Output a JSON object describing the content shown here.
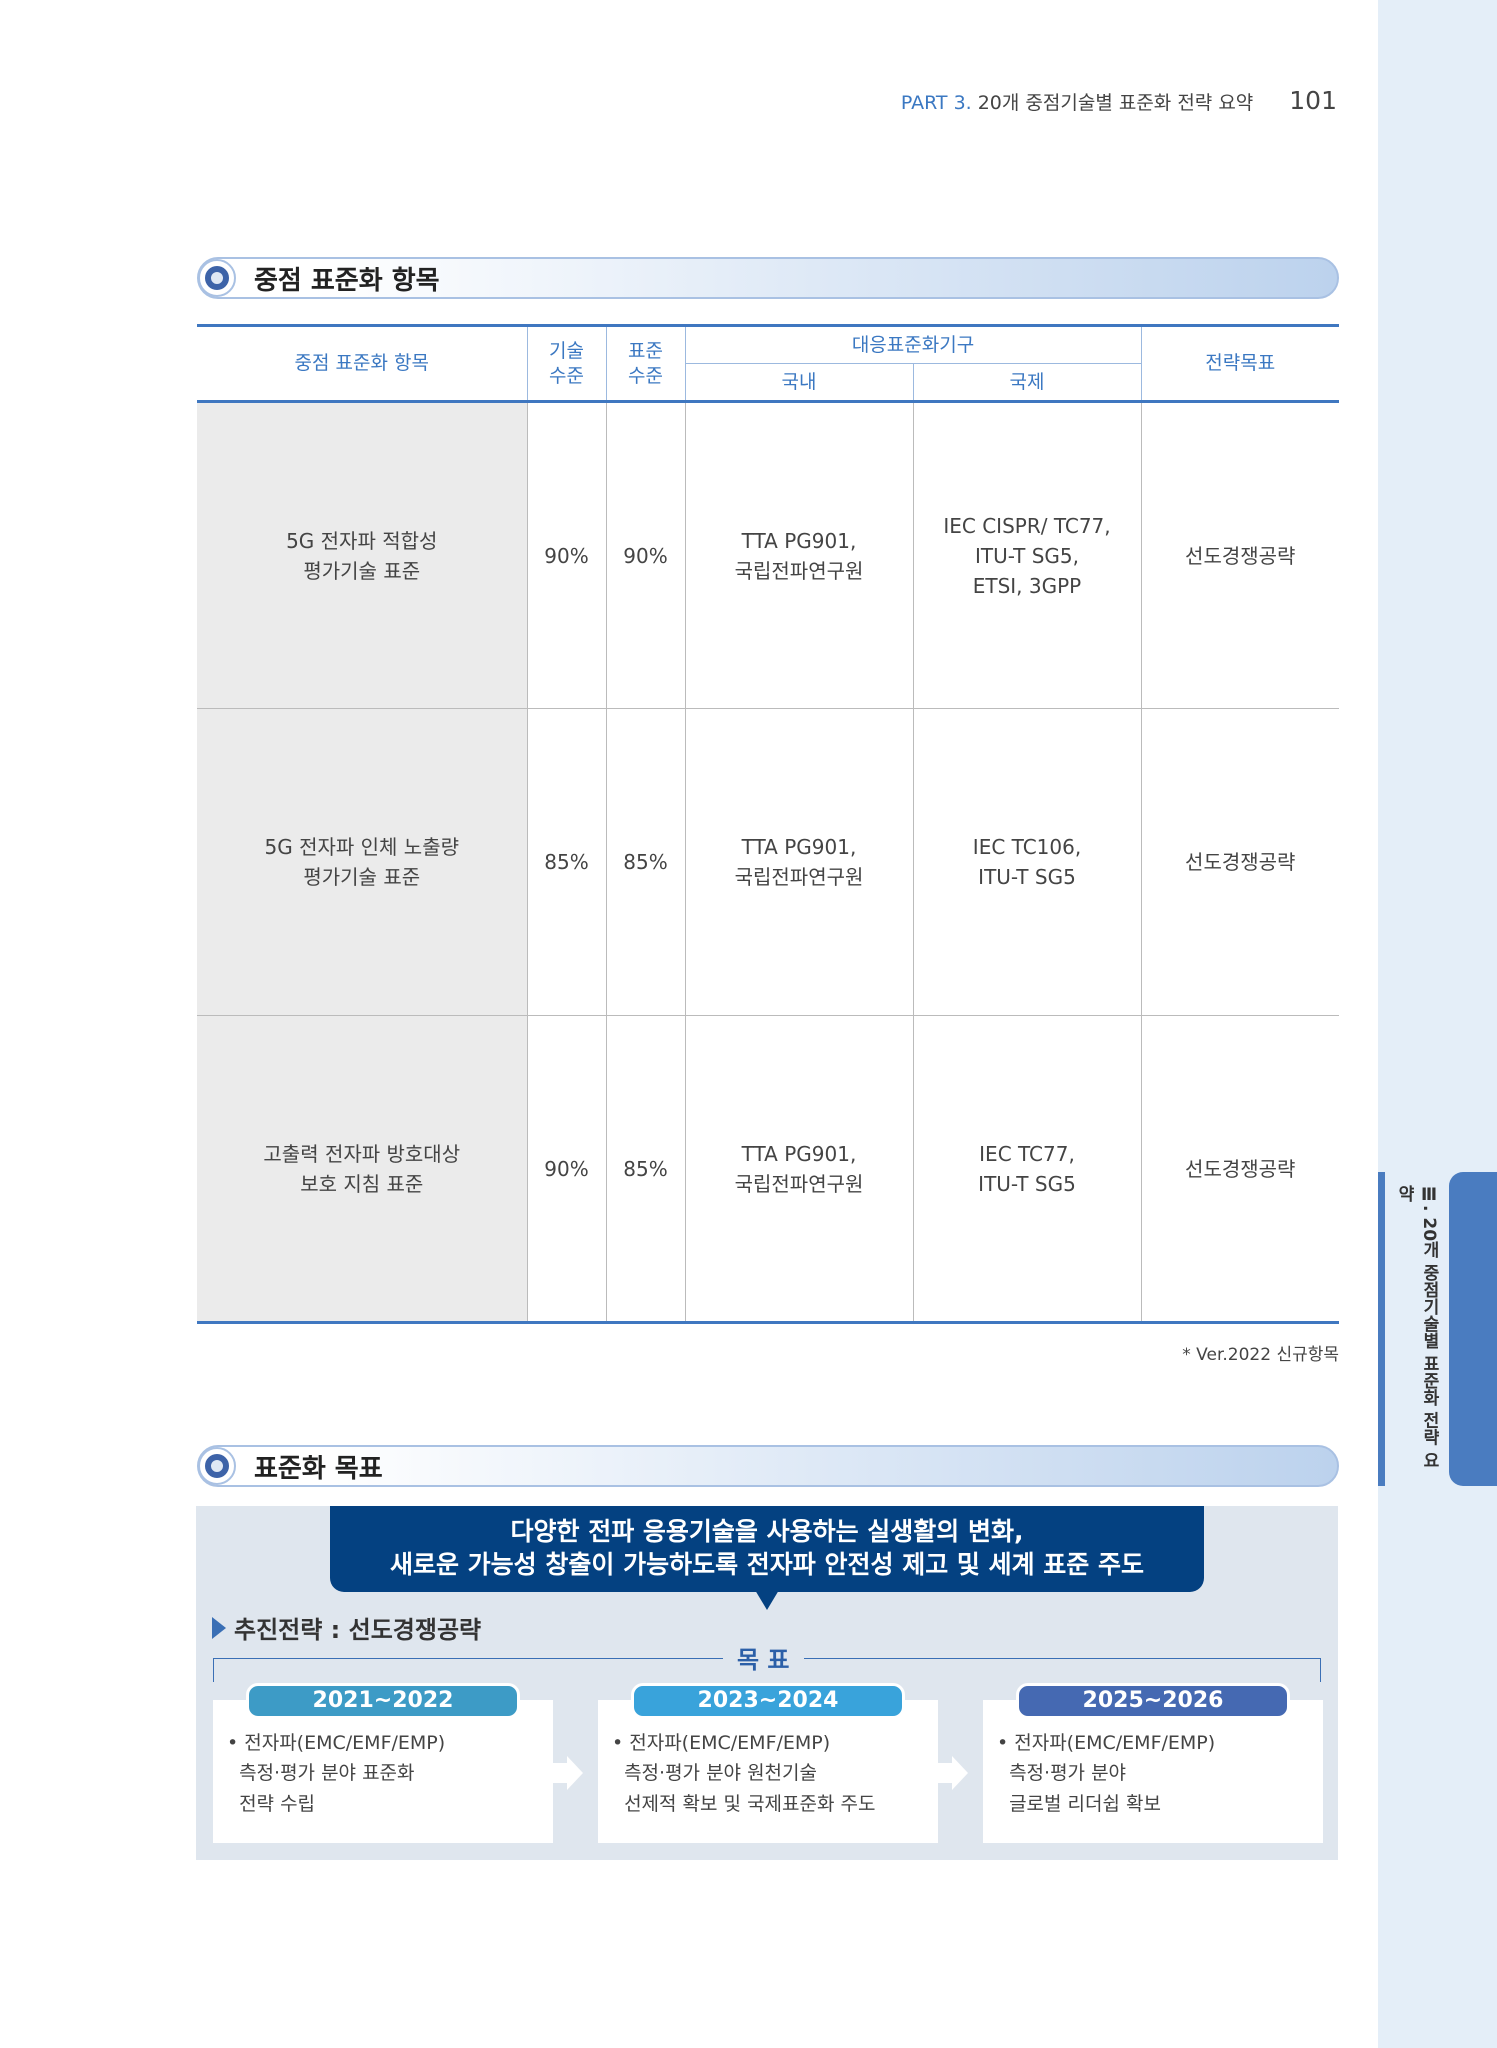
{
  "header": {
    "part": "PART 3.",
    "title": "20개 중점기술별 표준화 전략 요약",
    "page": "101"
  },
  "side_tab": "Ⅲ. 20개 중점기술별 표준화 전략 요약",
  "section1": {
    "title": "중점 표준화 항목"
  },
  "table": {
    "headers": {
      "item": "중점 표준화 항목",
      "tech": "기술\n수준",
      "std": "표준\n수준",
      "org": "대응표준화기구",
      "domestic": "국내",
      "intl": "국제",
      "goal": "전략목표"
    },
    "rows": [
      {
        "item": "5G 전자파 적합성\n평가기술 표준",
        "tech": "90%",
        "std": "90%",
        "domestic": "TTA PG901,\n국립전파연구원",
        "intl": "IEC CISPR/ TC77,\nITU-T SG5,\nETSI, 3GPP",
        "goal": "선도경쟁공략"
      },
      {
        "item": "5G 전자파 인체 노출량\n평가기술 표준",
        "tech": "85%",
        "std": "85%",
        "domestic": "TTA PG901,\n국립전파연구원",
        "intl": "IEC TC106,\nITU-T SG5",
        "goal": "선도경쟁공략"
      },
      {
        "item": "고출력 전자파 방호대상\n보호 지침 표준",
        "tech": "90%",
        "std": "85%",
        "domestic": "TTA PG901,\n국립전파연구원",
        "intl": "IEC TC77,\nITU-T SG5",
        "goal": "선도경쟁공략"
      }
    ],
    "note": "* Ver.2022 신규항목"
  },
  "section2": {
    "title": "표준화 목표"
  },
  "goals": {
    "banner_line1": "다양한 전파 응용기술을 사용하는 실생활의 변화,",
    "banner_line2": "새로운 가능성 창출이 가능하도록 전자파 안전성 제고 및 세계 표준 주도",
    "strategy": "추진전략 : 선도경쟁공략",
    "title": "목 표",
    "cards": [
      {
        "period": "2021~2022",
        "text": "• 전자파(EMC/EMF/EMP)\n  측정·평가 분야 표준화\n  전략 수립",
        "color": "#3d9bc6"
      },
      {
        "period": "2023~2024",
        "text": "• 전자파(EMC/EMF/EMP)\n  측정·평가 분야 원천기술\n  선제적 확보 및 국제표준화 주도",
        "color": "#39a3db"
      },
      {
        "period": "2025~2026",
        "text": "• 전자파(EMC/EMF/EMP)\n  측정·평가 분야\n  글로벌 리더쉽 확보",
        "color": "#4569b2"
      }
    ]
  }
}
